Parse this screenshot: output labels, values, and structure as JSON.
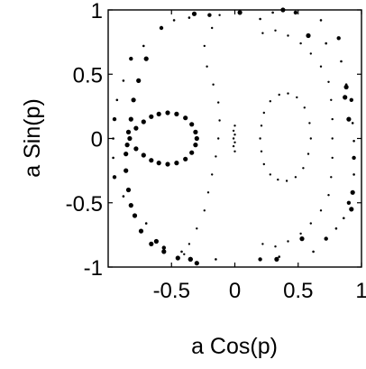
{
  "chart_data": {
    "type": "scatter",
    "title": "",
    "xlabel": "a Cos(p)",
    "ylabel": "a Sin(p)",
    "xlim": [
      -1,
      1
    ],
    "ylim": [
      -1,
      1
    ],
    "xticks": [
      -0.5,
      0,
      0.5,
      1
    ],
    "xtick_labels": [
      "-0.5",
      "0",
      "0.5",
      "1"
    ],
    "yticks": [
      1,
      0.5,
      0,
      -0.5,
      -1
    ],
    "ytick_labels": [
      "1",
      "0.5",
      "0",
      "-0.5",
      "-1"
    ],
    "grid": false,
    "legend": "none",
    "marker_color": "#000000",
    "series": [
      {
        "curve": "figure-eight-lobe",
        "marker": "large",
        "points": [
          [
            -0.83,
            0.0
          ],
          [
            -0.78,
            0.08
          ],
          [
            -0.72,
            0.13
          ],
          [
            -0.66,
            0.17
          ],
          [
            -0.6,
            0.19
          ],
          [
            -0.53,
            0.2
          ],
          [
            -0.46,
            0.19
          ],
          [
            -0.39,
            0.16
          ],
          [
            -0.34,
            0.11
          ],
          [
            -0.31,
            0.05
          ],
          [
            -0.3,
            0.0
          ],
          [
            -0.31,
            -0.05
          ],
          [
            -0.34,
            -0.11
          ],
          [
            -0.39,
            -0.16
          ],
          [
            -0.46,
            -0.19
          ],
          [
            -0.53,
            -0.2
          ],
          [
            -0.6,
            -0.19
          ],
          [
            -0.66,
            -0.17
          ],
          [
            -0.72,
            -0.13
          ],
          [
            -0.78,
            -0.08
          ]
        ]
      },
      {
        "curve": "left-separatrix",
        "marker": "large",
        "points": [
          [
            -0.7,
            0.62
          ],
          [
            -0.76,
            0.45
          ],
          [
            -0.8,
            0.3
          ],
          [
            -0.82,
            0.15
          ],
          [
            -0.84,
            0.05
          ],
          [
            -0.85,
            -0.05
          ],
          [
            -0.86,
            -0.12
          ],
          [
            -0.86,
            -0.25
          ],
          [
            -0.84,
            -0.4
          ],
          [
            -0.82,
            -0.52
          ],
          [
            -0.79,
            -0.6
          ],
          [
            -0.74,
            -0.72
          ],
          [
            -0.66,
            -0.82
          ],
          [
            -0.56,
            -0.88
          ],
          [
            -0.45,
            -0.93
          ],
          [
            -0.35,
            -0.94
          ],
          [
            -0.3,
            -0.97
          ]
        ]
      },
      {
        "curve": "right-island",
        "marker": "small",
        "points": [
          [
            0.6,
            0.0
          ],
          [
            0.59,
            0.12
          ],
          [
            0.55,
            0.24
          ],
          [
            0.49,
            0.32
          ],
          [
            0.42,
            0.35
          ],
          [
            0.35,
            0.34
          ],
          [
            0.28,
            0.29
          ],
          [
            0.23,
            0.2
          ],
          [
            0.21,
            0.1
          ],
          [
            0.2,
            0.0
          ],
          [
            0.21,
            -0.1
          ],
          [
            0.23,
            -0.2
          ],
          [
            0.28,
            -0.28
          ],
          [
            0.34,
            -0.32
          ],
          [
            0.41,
            -0.33
          ],
          [
            0.48,
            -0.3
          ],
          [
            0.54,
            -0.23
          ],
          [
            0.58,
            -0.12
          ]
        ]
      },
      {
        "curve": "center-spine",
        "marker": "small",
        "points": [
          [
            0.0,
            0.1
          ],
          [
            -0.01,
            0.06
          ],
          [
            0.0,
            0.03
          ],
          [
            -0.01,
            0.0
          ],
          [
            0.0,
            -0.03
          ],
          [
            -0.01,
            -0.06
          ],
          [
            0.0,
            -0.1
          ]
        ]
      },
      {
        "curve": "middle-band",
        "marker": "small",
        "points": [
          [
            -0.12,
            0.96
          ],
          [
            -0.18,
            0.86
          ],
          [
            -0.24,
            0.72
          ],
          [
            -0.22,
            0.56
          ],
          [
            -0.17,
            0.42
          ],
          [
            -0.13,
            0.28
          ],
          [
            -0.12,
            0.14
          ],
          [
            -0.13,
            0.0
          ],
          [
            -0.15,
            -0.14
          ],
          [
            -0.18,
            -0.28
          ],
          [
            -0.21,
            -0.42
          ],
          [
            -0.24,
            -0.56
          ],
          [
            -0.3,
            -0.7
          ],
          [
            -0.36,
            -0.82
          ],
          [
            -0.4,
            -0.9
          ]
        ]
      },
      {
        "curve": "right-band",
        "marker": "small",
        "points": [
          [
            0.22,
            0.82
          ],
          [
            0.32,
            0.84
          ],
          [
            0.42,
            0.8
          ],
          [
            0.52,
            0.74
          ],
          [
            0.6,
            0.66
          ],
          [
            0.68,
            0.56
          ],
          [
            0.74,
            0.44
          ],
          [
            0.76,
            0.3
          ],
          [
            0.77,
            0.15
          ],
          [
            0.77,
            0.0
          ],
          [
            0.77,
            -0.15
          ],
          [
            0.76,
            -0.3
          ],
          [
            0.74,
            -0.44
          ],
          [
            0.68,
            -0.56
          ],
          [
            0.6,
            -0.66
          ],
          [
            0.52,
            -0.74
          ],
          [
            0.42,
            -0.8
          ],
          [
            0.32,
            -0.84
          ],
          [
            0.22,
            -0.82
          ]
        ]
      },
      {
        "curve": "outer-scatter",
        "marker": "mixed",
        "points": [
          [
            -0.58,
            0.86
          ],
          [
            -0.48,
            0.92
          ],
          [
            -0.36,
            0.94
          ],
          [
            -0.2,
            0.96
          ],
          [
            0.2,
            0.93
          ],
          [
            0.3,
            0.98
          ],
          [
            0.48,
            0.98
          ],
          [
            0.68,
            0.92
          ],
          [
            0.72,
            0.74
          ],
          [
            0.82,
            0.78
          ],
          [
            0.84,
            0.6
          ],
          [
            0.88,
            0.42
          ],
          [
            0.92,
            0.3
          ],
          [
            0.93,
            0.12
          ],
          [
            0.94,
            -0.02
          ],
          [
            0.94,
            -0.15
          ],
          [
            0.94,
            -0.28
          ],
          [
            0.93,
            -0.42
          ],
          [
            0.9,
            -0.5
          ],
          [
            0.86,
            -0.62
          ],
          [
            0.8,
            -0.7
          ],
          [
            0.72,
            -0.78
          ],
          [
            0.62,
            -0.88
          ],
          [
            0.35,
            -0.92
          ],
          [
            0.2,
            -0.94
          ],
          [
            -0.15,
            -0.94
          ],
          [
            -0.42,
            -0.88
          ],
          [
            -0.56,
            -0.85
          ],
          [
            -0.7,
            -0.66
          ],
          [
            -0.88,
            -0.45
          ],
          [
            -0.95,
            -0.3
          ],
          [
            -0.96,
            -0.15
          ],
          [
            -0.96,
            0.0
          ],
          [
            -0.95,
            0.15
          ],
          [
            -0.93,
            0.3
          ],
          [
            -0.88,
            0.45
          ],
          [
            -0.82,
            0.62
          ],
          [
            -0.72,
            0.72
          ]
        ]
      },
      {
        "curve": "outer-large-markers",
        "marker": "large",
        "points": [
          [
            -0.32,
            0.97
          ],
          [
            0.04,
            0.98
          ],
          [
            0.38,
            1.0
          ],
          [
            0.58,
            0.8
          ],
          [
            0.87,
            0.32
          ],
          [
            0.9,
            0.15
          ],
          [
            0.92,
            -0.55
          ],
          [
            0.93,
            -0.42
          ],
          [
            0.53,
            -0.78
          ],
          [
            0.33,
            -0.94
          ],
          [
            -0.35,
            -0.94
          ],
          [
            -0.62,
            -0.8
          ],
          [
            0.88,
            0.4
          ]
        ]
      }
    ]
  }
}
